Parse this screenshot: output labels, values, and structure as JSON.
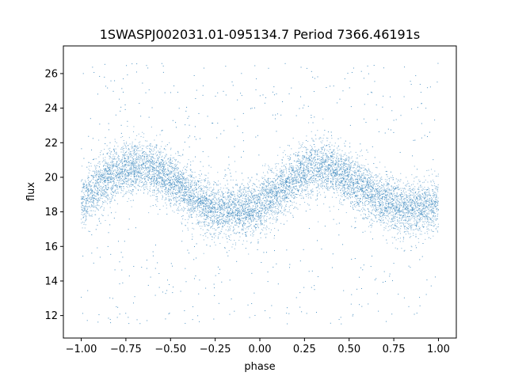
{
  "chart_data": {
    "type": "scatter",
    "title": "1SWASPJ002031.01-095134.7 Period 7366.46191s",
    "xlabel": "phase",
    "ylabel": "flux",
    "xlim": [
      -1.1,
      1.1
    ],
    "ylim": [
      10.7,
      27.6
    ],
    "xticks": [
      -1.0,
      -0.75,
      -0.5,
      -0.25,
      0.0,
      0.25,
      0.5,
      0.75,
      1.0
    ],
    "xtick_labels": [
      "−1.00",
      "−0.75",
      "−0.50",
      "−0.25",
      "0.00",
      "0.25",
      "0.50",
      "0.75",
      "1.00"
    ],
    "yticks": [
      12,
      14,
      16,
      18,
      20,
      22,
      24,
      26
    ],
    "ytick_labels": [
      "12",
      "14",
      "16",
      "18",
      "20",
      "22",
      "24",
      "26"
    ],
    "grid": false,
    "point_color": "#1f77b4",
    "phase_range": [
      -1.0,
      1.0
    ],
    "profile": {
      "phase": [
        -1.0,
        -0.9,
        -0.8,
        -0.7,
        -0.6,
        -0.5,
        -0.4,
        -0.3,
        -0.2,
        -0.1,
        0.0,
        0.1,
        0.2,
        0.3,
        0.4,
        0.5,
        0.6,
        0.7,
        0.8,
        0.9,
        1.0
      ],
      "flux": [
        18.5,
        19.6,
        20.3,
        20.6,
        20.5,
        19.9,
        19.0,
        18.4,
        18.1,
        18.1,
        18.4,
        19.1,
        20.0,
        20.6,
        20.5,
        19.9,
        19.1,
        18.5,
        18.2,
        18.2,
        18.5
      ]
    },
    "scatter_spread": 0.75,
    "outlier_range": [
      11.4,
      26.6
    ]
  }
}
